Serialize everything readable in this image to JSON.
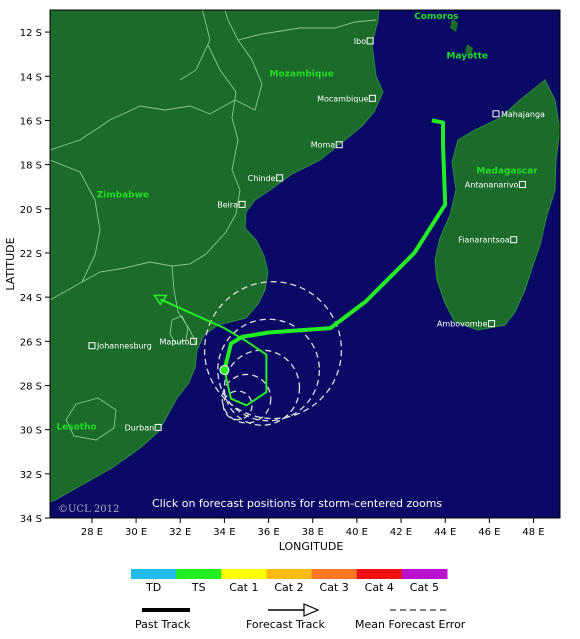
{
  "axes": {
    "x_title": "LONGITUDE",
    "y_title": "LATITUDE",
    "lat_ticks": [
      "12 S",
      "14 S",
      "16 S",
      "18 S",
      "20 S",
      "22 S",
      "24 S",
      "26 S",
      "28 S",
      "30 S",
      "32 S",
      "34 S"
    ],
    "lon_ticks": [
      "28 E",
      "30 E",
      "32 E",
      "34 E",
      "36 E",
      "38 E",
      "40 E",
      "42 E",
      "44 E",
      "46 E",
      "48 E"
    ]
  },
  "countries": [
    {
      "name": "Comoros",
      "lon": 43.6,
      "lat": -11.4
    },
    {
      "name": "Mozambique",
      "lon": 37.5,
      "lat": -14.0
    },
    {
      "name": "Mayotte",
      "lon": 45.0,
      "lat": -13.2
    },
    {
      "name": "Madagascar",
      "lon": 46.8,
      "lat": -18.4
    },
    {
      "name": "Zimbabwe",
      "lon": 29.4,
      "lat": -19.5
    },
    {
      "name": "Lesotho",
      "lon": 27.3,
      "lat": -30.0
    }
  ],
  "cities": [
    {
      "name": "Ibo",
      "lon": 40.6,
      "lat": -12.4,
      "label_side": "left"
    },
    {
      "name": "Mocambique",
      "lon": 40.7,
      "lat": -15.0,
      "label_side": "left"
    },
    {
      "name": "Mahajanga",
      "lon": 46.3,
      "lat": -15.7,
      "label_side": "right"
    },
    {
      "name": "Moma",
      "lon": 39.2,
      "lat": -17.1,
      "label_side": "left"
    },
    {
      "name": "Chinde",
      "lon": 36.5,
      "lat": -18.6,
      "label_side": "left"
    },
    {
      "name": "Antananarivo",
      "lon": 47.5,
      "lat": -18.9,
      "label_side": "left"
    },
    {
      "name": "Beira",
      "lon": 34.8,
      "lat": -19.8,
      "label_side": "left"
    },
    {
      "name": "Fianarantsoa",
      "lon": 47.1,
      "lat": -21.4,
      "label_side": "left"
    },
    {
      "name": "Maputo",
      "lon": 32.6,
      "lat": -26.0,
      "label_side": "left"
    },
    {
      "name": "Ambovombe",
      "lon": 46.1,
      "lat": -25.2,
      "label_side": "left"
    },
    {
      "name": "Johannesburg",
      "lon": 28.0,
      "lat": -26.2,
      "label_side": "right"
    },
    {
      "name": "Durban",
      "lon": 31.0,
      "lat": -29.9,
      "label_side": "left"
    }
  ],
  "past_track": [
    [
      43.4,
      -16.0
    ],
    [
      43.9,
      -16.1
    ],
    [
      43.9,
      -17.1
    ],
    [
      44.0,
      -19.8
    ],
    [
      42.6,
      -22.0
    ],
    [
      40.4,
      -24.2
    ],
    [
      38.8,
      -25.4
    ],
    [
      36.0,
      -25.6
    ],
    [
      34.8,
      -25.8
    ],
    [
      34.3,
      -26.1
    ],
    [
      34.0,
      -27.3
    ]
  ],
  "forecast_track": [
    [
      34.0,
      -27.3
    ],
    [
      34.3,
      -28.6
    ],
    [
      35.0,
      -28.9
    ],
    [
      35.9,
      -28.3
    ],
    [
      35.9,
      -26.6
    ],
    [
      35.0,
      -26.0
    ],
    [
      34.0,
      -25.4
    ],
    [
      31.1,
      -24.1
    ]
  ],
  "current_position": [
    34.0,
    -27.3
  ],
  "forecast_end": [
    31.1,
    -24.1
  ],
  "error_circles": [
    {
      "lon": 36.2,
      "lat": -26.4,
      "r_deg": 3.1
    },
    {
      "lon": 36.0,
      "lat": -27.3,
      "r_deg": 2.3
    },
    {
      "lon": 35.7,
      "lat": -28.1,
      "r_deg": 1.7
    },
    {
      "lon": 35.0,
      "lat": -28.6,
      "r_deg": 1.1
    },
    {
      "lon": 34.6,
      "lat": -28.9,
      "r_deg": 0.65
    }
  ],
  "notice": "Click on forecast positions for storm-centered zooms",
  "copyright": "©UCL 2012",
  "intensity_scale": {
    "categories": [
      {
        "label": "TD",
        "color": "#22bbee"
      },
      {
        "label": "TS",
        "color": "#22ee22"
      },
      {
        "label": "Cat 1",
        "color": "#ffff00"
      },
      {
        "label": "Cat 2",
        "color": "#ffbb11"
      },
      {
        "label": "Cat 3",
        "color": "#ff7722"
      },
      {
        "label": "Cat 4",
        "color": "#ee1111"
      },
      {
        "label": "Cat 5",
        "color": "#bb11cc"
      }
    ]
  },
  "legend": {
    "past_track": "Past Track",
    "forecast_track": "Forecast Track",
    "mean_error": "Mean Forecast Error"
  },
  "colors": {
    "ocean": "#0a0a66",
    "land": "#1b6b2a",
    "border": "#88cc88",
    "track": "#22ee22",
    "error_circle": "#dddddd"
  }
}
